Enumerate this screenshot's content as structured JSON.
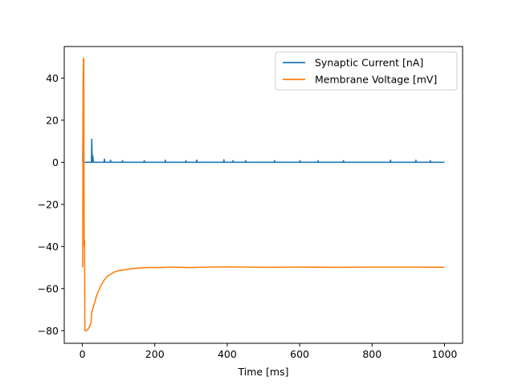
{
  "chart_data": {
    "type": "line",
    "title": "",
    "xlabel": "Time [ms]",
    "ylabel": "",
    "xlim": [
      -50,
      1050
    ],
    "ylim": [
      -86,
      55
    ],
    "xticks": [
      0,
      200,
      400,
      600,
      800,
      1000
    ],
    "yticks": [
      40,
      20,
      0,
      -20,
      -40,
      -60,
      -80
    ],
    "xtick_labels": [
      "0",
      "200",
      "400",
      "600",
      "800",
      "1000"
    ],
    "ytick_labels": [
      "40",
      "20",
      "0",
      "−20",
      "−40",
      "−60",
      "−80"
    ],
    "grid": false,
    "legend_position": "top-right",
    "series": [
      {
        "name": "Synaptic Current [nA]",
        "color": "#1f77b4",
        "x": [
          0,
          1,
          2,
          2.5,
          3,
          4,
          6,
          25,
          26,
          27,
          28,
          29,
          30,
          31,
          34,
          60,
          61,
          62,
          77,
          78,
          79,
          110,
          111,
          112,
          170,
          171,
          172,
          228,
          229,
          230,
          285,
          286,
          287,
          315,
          316,
          317,
          390,
          391,
          392,
          415,
          416,
          417,
          450,
          451,
          452,
          530,
          531,
          532,
          600,
          601,
          602,
          650,
          651,
          652,
          720,
          721,
          722,
          850,
          851,
          852,
          920,
          921,
          922,
          960,
          961,
          962,
          1000
        ],
        "y": [
          0,
          0,
          25,
          12,
          5,
          0,
          0,
          0,
          11,
          4,
          0,
          3,
          1,
          0,
          0,
          0,
          1.5,
          0,
          0,
          1,
          0,
          0,
          0.8,
          0,
          0,
          0.8,
          0,
          0,
          1,
          0,
          0,
          0.8,
          0,
          0,
          1,
          0,
          0,
          1.2,
          0,
          0,
          0.8,
          0,
          0,
          0.8,
          0,
          0,
          0.8,
          0,
          0,
          0.8,
          0,
          0,
          0.8,
          0,
          0,
          0.8,
          0,
          0,
          1,
          0,
          0,
          1,
          0,
          0,
          0.8,
          0,
          0
        ]
      },
      {
        "name": "Membrane Voltage [mV]",
        "color": "#ff7f0e",
        "x": [
          0,
          1,
          2,
          3,
          4,
          5,
          6,
          7,
          8,
          10,
          15,
          20,
          24,
          26,
          28,
          30,
          35,
          40,
          50,
          60,
          70,
          80,
          90,
          100,
          120,
          140,
          160,
          180,
          200,
          220,
          240,
          270,
          300,
          350,
          400,
          450,
          500,
          600,
          700,
          800,
          900,
          1000
        ],
        "y": [
          -50,
          -49,
          35,
          49.5,
          48,
          -40,
          -37,
          -80,
          -80,
          -80,
          -79.5,
          -78,
          -76,
          -71,
          -70,
          -69,
          -66,
          -63,
          -59,
          -56,
          -54,
          -53,
          -52,
          -51.5,
          -51,
          -50.5,
          -50.2,
          -50,
          -50,
          -50,
          -49.8,
          -49.9,
          -50,
          -49.8,
          -49.7,
          -49.8,
          -49.9,
          -49.8,
          -49.9,
          -49.8,
          -49.8,
          -49.9
        ]
      }
    ]
  }
}
